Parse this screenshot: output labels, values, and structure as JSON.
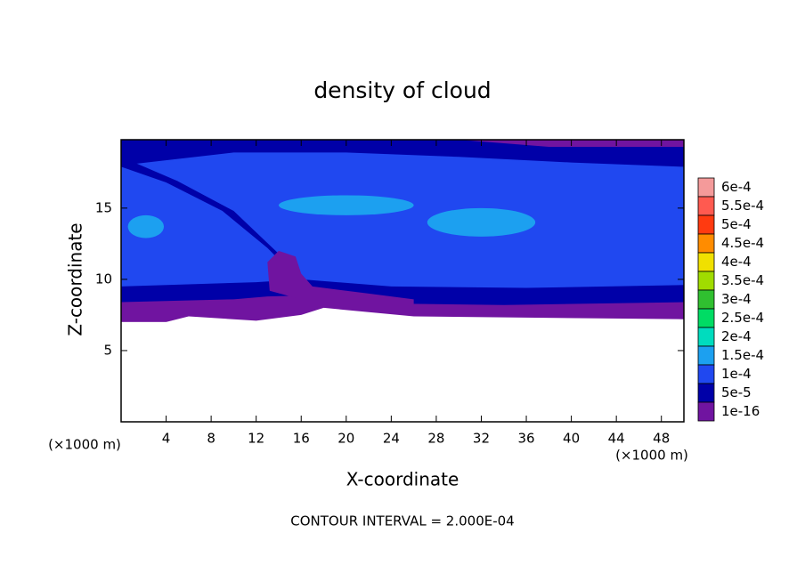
{
  "chart_data": {
    "type": "contour",
    "title": "density of cloud",
    "x_label": "X-coordinate",
    "y_label": "Z-coordinate",
    "x_unit": "(×1000 m)",
    "y_unit": "(×1000 m)",
    "footer": "CONTOUR INTERVAL = 2.000E-04",
    "xlim": [
      0,
      50
    ],
    "xticks": [
      4,
      8,
      12,
      16,
      20,
      24,
      28,
      32,
      36,
      40,
      44,
      48
    ],
    "ylim": [
      0,
      19.8
    ],
    "yticks": [
      5,
      10,
      15
    ],
    "levels": [
      {
        "value": 0.0006,
        "label": "6e-4",
        "color": "#f49a9a"
      },
      {
        "value": 0.00055,
        "label": "5.5e-4",
        "color": "#ff5a50"
      },
      {
        "value": 0.0005,
        "label": "5e-4",
        "color": "#ff3a10"
      },
      {
        "value": 0.00045,
        "label": "4.5e-4",
        "color": "#ff8c00"
      },
      {
        "value": 0.0004,
        "label": "4e-4",
        "color": "#f0e000"
      },
      {
        "value": 0.00035,
        "label": "3.5e-4",
        "color": "#a0dc00"
      },
      {
        "value": 0.0003,
        "label": "3e-4",
        "color": "#30c030"
      },
      {
        "value": 0.00025,
        "label": "2.5e-4",
        "color": "#00dc64"
      },
      {
        "value": 0.0002,
        "label": "2e-4",
        "color": "#00dcbe"
      },
      {
        "value": 0.00015,
        "label": "1.5e-4",
        "color": "#1ca0f0"
      },
      {
        "value": 0.0001,
        "label": "1e-4",
        "color": "#2048f0"
      },
      {
        "value": 5e-05,
        "label": "5e-5",
        "color": "#0000a8"
      },
      {
        "value": 1e-16,
        "label": "1e-16",
        "color": "#7014a0"
      }
    ]
  }
}
